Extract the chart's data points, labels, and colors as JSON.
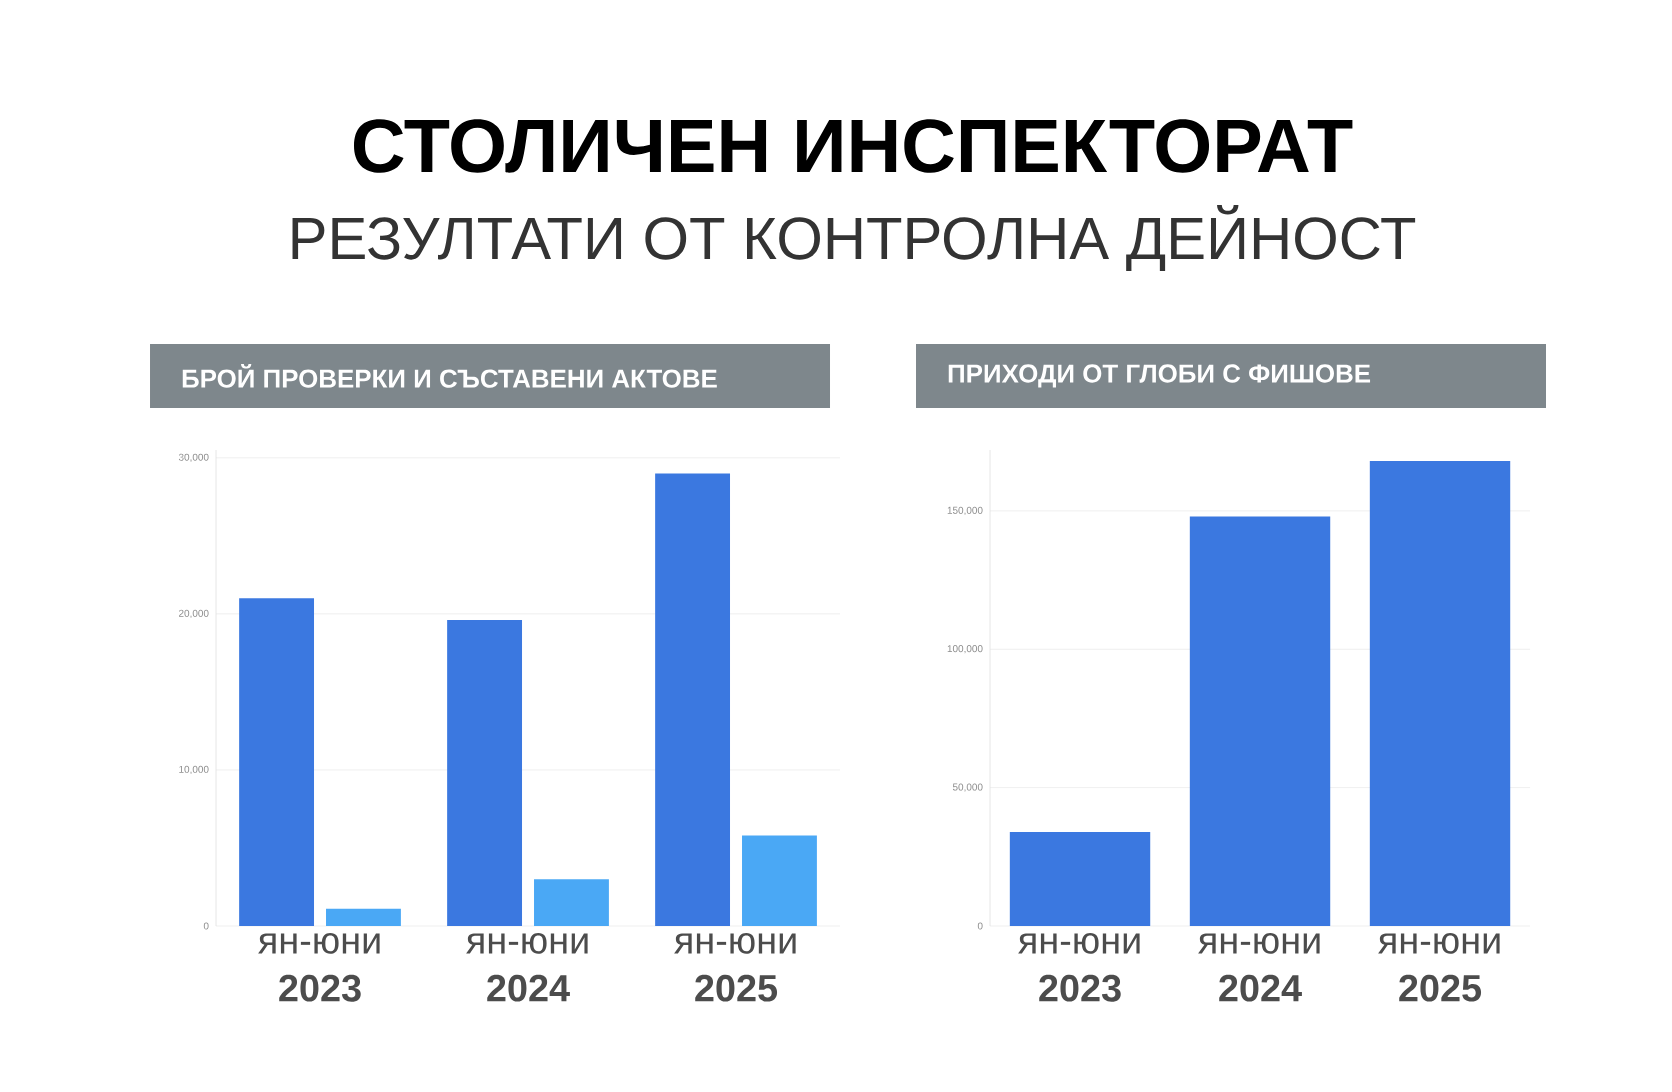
{
  "chart_data": [
    {
      "type": "other",
      "title": "СТОЛИЧЕН ИНСПЕКТОРАТ",
      "subtitle": "РЕЗУЛТАТИ ОТ КОНТРОЛНА ДЕЙНОСТ"
    },
    {
      "type": "bar",
      "title": "БРОЙ ПРОВЕРКИ И СЪСТАВЕНИ АКТОВЕ",
      "categories": [
        "ян-юни **2023**",
        "ян-юни **2024**",
        "ян-юни **2025**"
      ],
      "series": [
        {
          "color": "#3b78e0",
          "values": [
            21000,
            19600,
            29000
          ]
        },
        {
          "color": "#4aa8f5",
          "values": [
            1100,
            3000,
            5800
          ]
        }
      ],
      "ylim": [
        0,
        30500
      ],
      "yticks": [
        {
          "value": 0,
          "label": "0"
        },
        {
          "value": 10000,
          "label": "10,000"
        },
        {
          "value": 20000,
          "label": "20,000"
        },
        {
          "value": 30000,
          "label": "30,000"
        }
      ],
      "grid": "y"
    },
    {
      "type": "bar",
      "title": "ПРИХОДИ ОТ ГЛОБИ С ФИШОВЕ",
      "categories": [
        "ян-юни **2023**",
        "ян-юни **2024**",
        "ян-юни **2025**"
      ],
      "series": [
        {
          "color": "#3b78e0",
          "values": [
            34000,
            148000,
            168000
          ]
        }
      ],
      "ylim": [
        0,
        172000
      ],
      "yticks": [
        {
          "value": 0,
          "label": "0"
        },
        {
          "value": 50000,
          "label": "50,000"
        },
        {
          "value": 100000,
          "label": "100,000"
        },
        {
          "value": 150000,
          "label": "150,000"
        }
      ],
      "grid": "y"
    }
  ]
}
